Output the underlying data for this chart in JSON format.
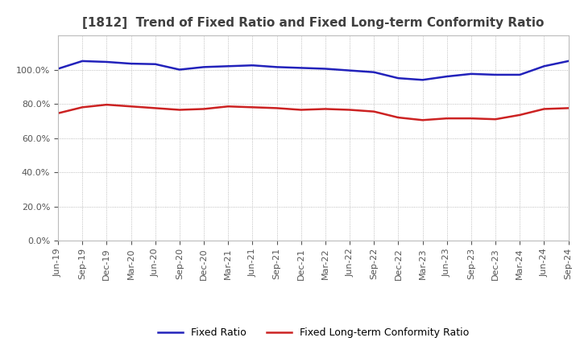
{
  "title": "[1812]  Trend of Fixed Ratio and Fixed Long-term Conformity Ratio",
  "title_color": "#404040",
  "x_labels": [
    "Jun-19",
    "Sep-19",
    "Dec-19",
    "Mar-20",
    "Jun-20",
    "Sep-20",
    "Dec-20",
    "Mar-21",
    "Jun-21",
    "Sep-21",
    "Dec-21",
    "Mar-22",
    "Jun-22",
    "Sep-22",
    "Dec-22",
    "Mar-23",
    "Jun-23",
    "Sep-23",
    "Dec-23",
    "Mar-24",
    "Jun-24",
    "Sep-24"
  ],
  "fixed_ratio": [
    100.5,
    105.0,
    104.5,
    103.5,
    103.2,
    100.0,
    101.5,
    102.0,
    102.5,
    101.5,
    101.0,
    100.5,
    99.5,
    98.5,
    95.0,
    94.0,
    96.0,
    97.5,
    97.0,
    97.0,
    102.0,
    105.0
  ],
  "fixed_lt_conformity": [
    74.5,
    78.0,
    79.5,
    78.5,
    77.5,
    76.5,
    77.0,
    78.5,
    78.0,
    77.5,
    76.5,
    77.0,
    76.5,
    75.5,
    72.0,
    70.5,
    71.5,
    71.5,
    71.0,
    73.5,
    77.0,
    77.5
  ],
  "fixed_ratio_color": "#2222bb",
  "fixed_lt_color": "#cc2222",
  "ylim_min": 0,
  "ylim_max": 120,
  "yticks": [
    0,
    20,
    40,
    60,
    80,
    100
  ],
  "bg_color": "#ffffff",
  "plot_bg_color": "#ffffff",
  "grid_color": "#aaaaaa",
  "legend_fixed": "Fixed Ratio",
  "legend_lt": "Fixed Long-term Conformity Ratio",
  "line_width": 1.8,
  "title_fontsize": 11,
  "tick_fontsize": 8,
  "legend_fontsize": 9
}
